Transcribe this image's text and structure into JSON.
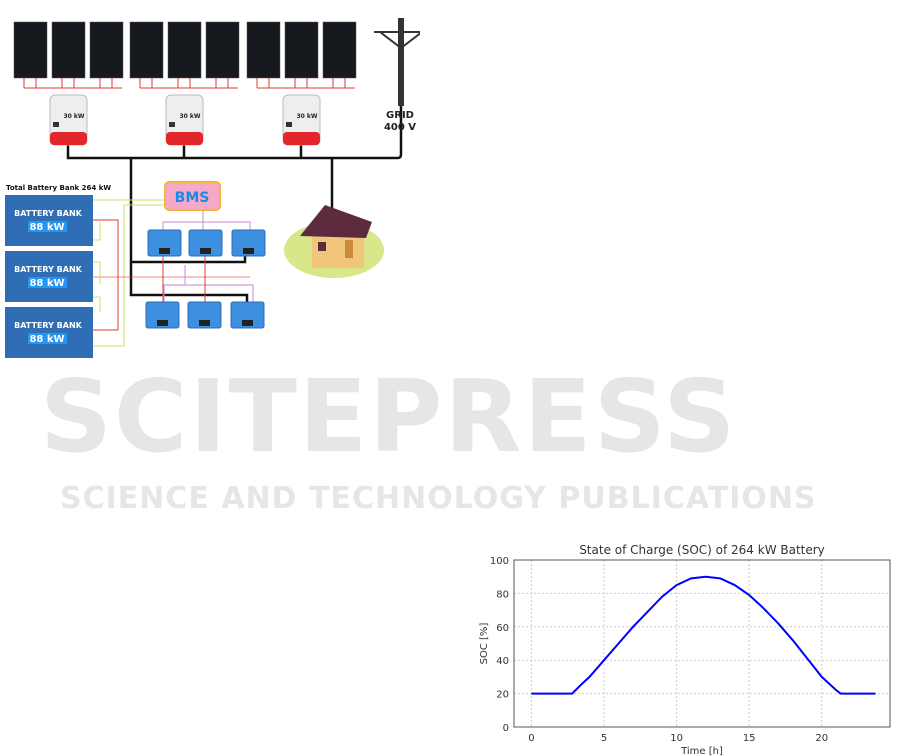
{
  "watermark": {
    "line1": "SCITEPRESS",
    "line2": "SCIENCE AND TECHNOLOGY PUBLICATIONS"
  },
  "diagram": {
    "inverter_label": "30 kW",
    "grid_label": "GRID",
    "grid_voltage": "400 V",
    "bms_label": "BMS",
    "total_battery_label": "Total Battery Bank 264 kW",
    "battery_banks": [
      {
        "label": "BATTERY BANK",
        "capacity": "88 kW"
      },
      {
        "label": "BATTERY BANK",
        "capacity": "88 kW"
      },
      {
        "label": "BATTERY BANK",
        "capacity": "88 kW"
      }
    ]
  },
  "chart_data": {
    "type": "line",
    "title": "State of Charge (SOC) of 264 kW Battery",
    "xlabel": "Time [h]",
    "ylabel": "SOC [%]",
    "xlim": [
      -1.2,
      24.7
    ],
    "ylim": [
      0,
      100
    ],
    "xticks": [
      0,
      5,
      10,
      15,
      20
    ],
    "yticks": [
      0,
      20,
      40,
      60,
      80,
      100
    ],
    "grid": true,
    "color": "#0000ff",
    "x": [
      0,
      2.8,
      3.5,
      4,
      5,
      6,
      7,
      8,
      9,
      10,
      11,
      12,
      13,
      14,
      15,
      16,
      17,
      18,
      19,
      20,
      21,
      21.3,
      23.7
    ],
    "y": [
      20,
      20,
      26,
      30,
      40,
      50,
      60,
      69,
      78,
      85,
      89,
      90,
      89,
      85,
      79,
      71,
      62,
      52,
      41,
      30,
      22,
      20,
      20
    ]
  }
}
